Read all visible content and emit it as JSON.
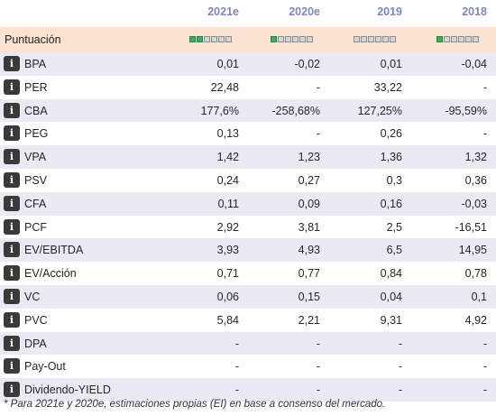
{
  "header": {
    "columns": [
      "2021e",
      "2020e",
      "2019",
      "2018"
    ]
  },
  "score": {
    "label": "Puntuación",
    "levels": [
      {
        "filled": 2,
        "total": 6
      },
      {
        "filled": 1,
        "total": 6
      },
      {
        "filled": 0,
        "total": 6
      },
      {
        "filled": 1,
        "total": 6
      }
    ],
    "colors": {
      "filled": "#3faa63",
      "empty": "#d5d5d5"
    }
  },
  "rows": [
    {
      "name": "BPA",
      "values": [
        "0,01",
        "-0,02",
        "0,01",
        "-0,04"
      ]
    },
    {
      "name": "PER",
      "values": [
        "22,48",
        "-",
        "33,22",
        "-"
      ]
    },
    {
      "name": "CBA",
      "values": [
        "177,6%",
        "-258,68%",
        "127,25%",
        "-95,59%"
      ]
    },
    {
      "name": "PEG",
      "values": [
        "0,13",
        "-",
        "0,26",
        "-"
      ]
    },
    {
      "name": "VPA",
      "values": [
        "1,42",
        "1,23",
        "1,36",
        "1,32"
      ]
    },
    {
      "name": "PSV",
      "values": [
        "0,24",
        "0,27",
        "0,3",
        "0,36"
      ]
    },
    {
      "name": "CFA",
      "values": [
        "0,11",
        "0,09",
        "0,16",
        "-0,03"
      ]
    },
    {
      "name": "PCF",
      "values": [
        "2,92",
        "3,81",
        "2,5",
        "-16,51"
      ]
    },
    {
      "name": "EV/EBITDA",
      "values": [
        "3,93",
        "4,93",
        "6,5",
        "14,95"
      ]
    },
    {
      "name": "EV/Acción",
      "values": [
        "0,71",
        "0,77",
        "0,84",
        "0,78"
      ]
    },
    {
      "name": "VC",
      "values": [
        "0,06",
        "0,15",
        "0,04",
        "0,1"
      ]
    },
    {
      "name": "PVC",
      "values": [
        "5,84",
        "2,21",
        "9,31",
        "4,92"
      ]
    },
    {
      "name": "DPA",
      "values": [
        "-",
        "-",
        "-",
        "-"
      ]
    },
    {
      "name": "Pay-Out",
      "values": [
        "-",
        "-",
        "-",
        "-"
      ]
    },
    {
      "name": "Dividendo-YIELD",
      "values": [
        "-",
        "-",
        "-",
        "-"
      ]
    }
  ],
  "info_icon": {
    "name": "info-icon",
    "glyph": "i"
  },
  "footnote": "* Para 2021e y 2020e, estimaciones propias (EI) en base a consenso del mercado."
}
